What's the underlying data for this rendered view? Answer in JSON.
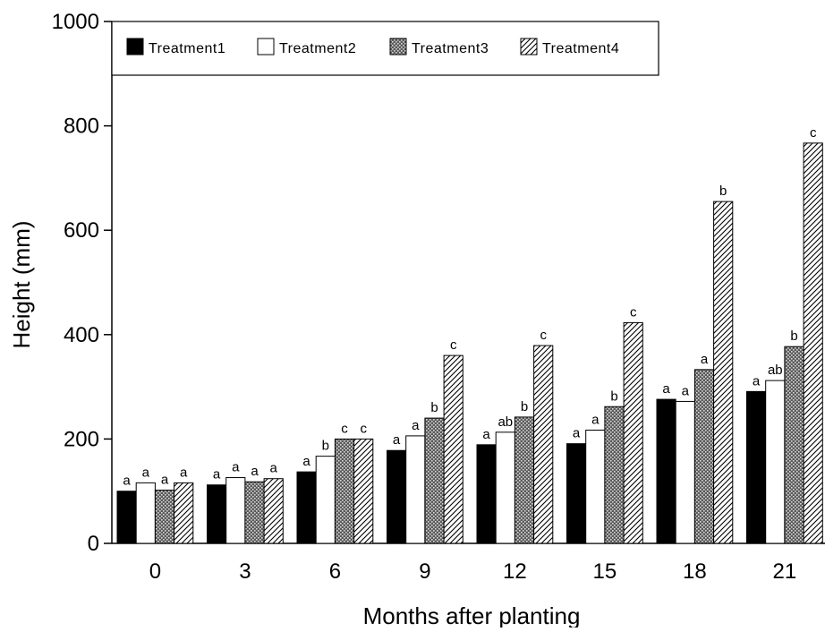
{
  "chart_data": {
    "type": "bar",
    "title": "",
    "xlabel": "Months after planting",
    "ylabel": "Height (mm)",
    "ylim": [
      0,
      1000
    ],
    "yticks": [
      0,
      200,
      400,
      600,
      800,
      1000
    ],
    "categories": [
      "0",
      "3",
      "6",
      "9",
      "12",
      "15",
      "18",
      "21"
    ],
    "grid": false,
    "legend_position": "top-left",
    "series": [
      {
        "name": "Treatment1",
        "fill": "solid-black",
        "values": [
          100,
          112,
          137,
          178,
          189,
          191,
          276,
          291
        ],
        "labels": [
          "a",
          "a",
          "a",
          "a",
          "a",
          "a",
          "a",
          "a"
        ]
      },
      {
        "name": "Treatment2",
        "fill": "white",
        "values": [
          116,
          126,
          167,
          206,
          213,
          217,
          272,
          312
        ],
        "labels": [
          "a",
          "a",
          "b",
          "a",
          "ab",
          "a",
          "a",
          "ab"
        ]
      },
      {
        "name": "Treatment3",
        "fill": "dotted",
        "values": [
          102,
          118,
          200,
          240,
          242,
          262,
          333,
          377
        ],
        "labels": [
          "a",
          "a",
          "c",
          "b",
          "b",
          "b",
          "a",
          "b"
        ]
      },
      {
        "name": "Treatment4",
        "fill": "diagonal-hatch",
        "values": [
          116,
          124,
          200,
          360,
          379,
          423,
          655,
          767
        ],
        "labels": [
          "a",
          "a",
          "c",
          "c",
          "c",
          "c",
          "b",
          "c"
        ]
      }
    ]
  }
}
